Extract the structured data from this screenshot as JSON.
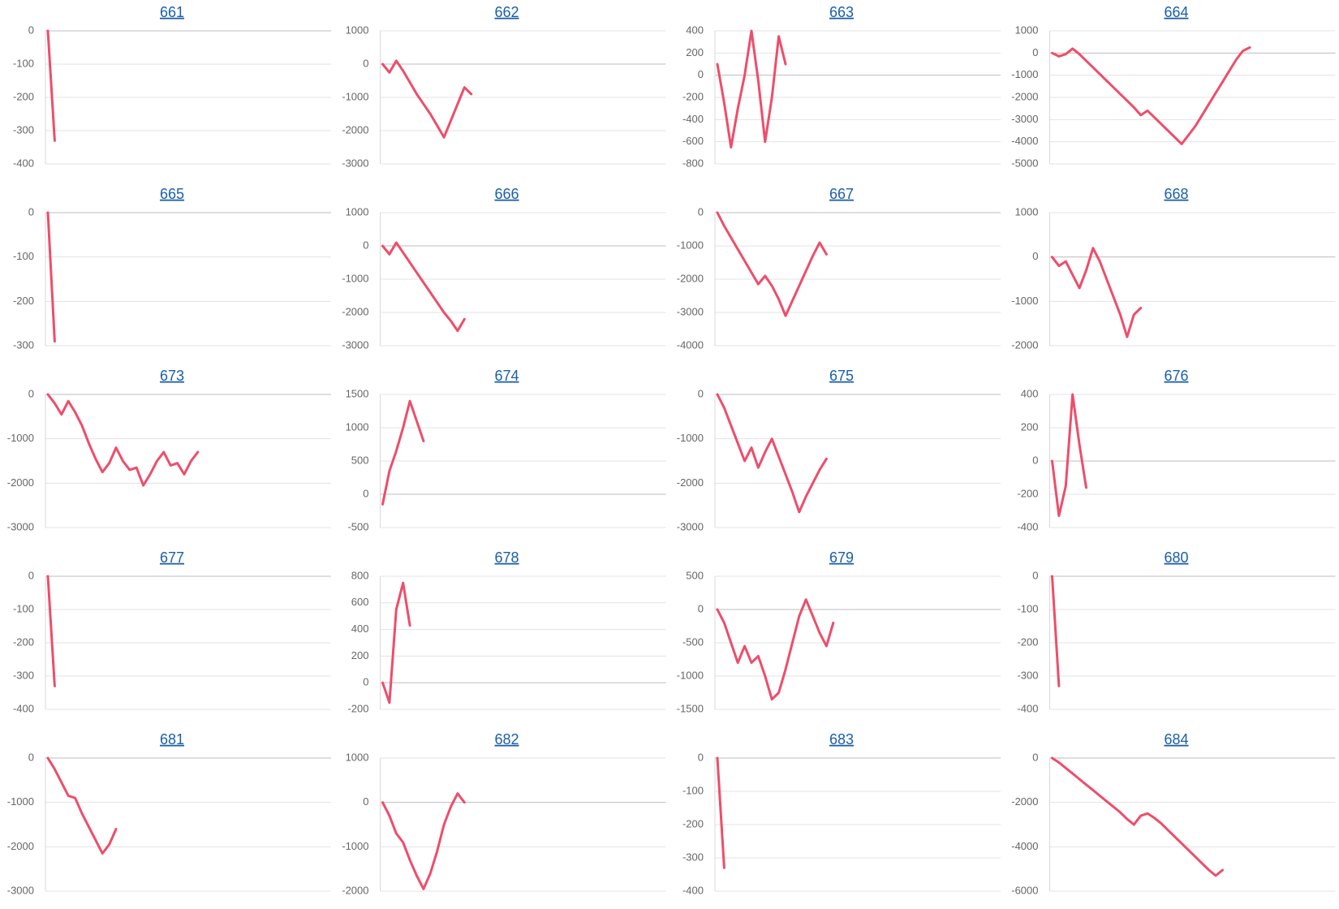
{
  "chart_data": [
    {
      "type": "line",
      "title": "661",
      "color": "#ee4d6a",
      "grid": true,
      "ylim": [
        -400,
        0
      ],
      "yticks": [
        0,
        -100,
        -200,
        -300,
        -400
      ],
      "values": [
        0,
        -330
      ]
    },
    {
      "type": "line",
      "title": "662",
      "color": "#ee4d6a",
      "grid": true,
      "ylim": [
        -3000,
        1000
      ],
      "yticks": [
        1000,
        0,
        -1000,
        -2000,
        -3000
      ],
      "values": [
        0,
        -250,
        100,
        -200,
        -550,
        -900,
        -1200,
        -1500,
        -1850,
        -2200,
        -1700,
        -1200,
        -700,
        -900
      ]
    },
    {
      "type": "line",
      "title": "663",
      "color": "#ee4d6a",
      "grid": true,
      "ylim": [
        -800,
        400
      ],
      "yticks": [
        400,
        200,
        0,
        -200,
        -400,
        -600,
        -800
      ],
      "values": [
        100,
        -250,
        -650,
        -300,
        0,
        400,
        -50,
        -600,
        -200,
        350,
        100
      ]
    },
    {
      "type": "line",
      "title": "664",
      "color": "#ee4d6a",
      "grid": true,
      "ylim": [
        -5000,
        1000
      ],
      "yticks": [
        1000,
        0,
        -1000,
        -2000,
        -3000,
        -4000,
        -5000
      ],
      "values": [
        0,
        -150,
        -50,
        200,
        -50,
        -350,
        -650,
        -950,
        -1250,
        -1550,
        -1850,
        -2150,
        -2450,
        -2800,
        -2600,
        -2900,
        -3200,
        -3500,
        -3800,
        -4100,
        -3700,
        -3300,
        -2800,
        -2300,
        -1800,
        -1300,
        -800,
        -300,
        100,
        250
      ]
    },
    {
      "type": "line",
      "title": "665",
      "color": "#ee4d6a",
      "grid": true,
      "ylim": [
        -300,
        0
      ],
      "yticks": [
        0,
        -100,
        -200,
        -300
      ],
      "values": [
        0,
        -290
      ]
    },
    {
      "type": "line",
      "title": "666",
      "color": "#ee4d6a",
      "grid": true,
      "ylim": [
        -3000,
        1000
      ],
      "yticks": [
        1000,
        0,
        -1000,
        -2000,
        -3000
      ],
      "values": [
        0,
        -250,
        100,
        -200,
        -500,
        -800,
        -1100,
        -1400,
        -1700,
        -2000,
        -2250,
        -2550,
        -2200
      ]
    },
    {
      "type": "line",
      "title": "667",
      "color": "#ee4d6a",
      "grid": true,
      "ylim": [
        -4000,
        0
      ],
      "yticks": [
        0,
        -1000,
        -2000,
        -3000,
        -4000
      ],
      "values": [
        0,
        -400,
        -750,
        -1100,
        -1450,
        -1800,
        -2150,
        -1900,
        -2200,
        -2600,
        -3100,
        -2650,
        -2200,
        -1750,
        -1300,
        -900,
        -1250
      ]
    },
    {
      "type": "line",
      "title": "668",
      "color": "#ee4d6a",
      "grid": true,
      "ylim": [
        -2000,
        1000
      ],
      "yticks": [
        1000,
        0,
        -1000,
        -2000
      ],
      "values": [
        0,
        -200,
        -100,
        -400,
        -700,
        -300,
        200,
        -100,
        -500,
        -900,
        -1300,
        -1800,
        -1300,
        -1150
      ]
    },
    {
      "type": "line",
      "title": "673",
      "color": "#ee4d6a",
      "grid": true,
      "ylim": [
        -3000,
        0
      ],
      "yticks": [
        0,
        -1000,
        -2000,
        -3000
      ],
      "values": [
        0,
        -200,
        -450,
        -150,
        -400,
        -700,
        -1100,
        -1450,
        -1750,
        -1550,
        -1200,
        -1500,
        -1700,
        -1650,
        -2050,
        -1800,
        -1500,
        -1300,
        -1600,
        -1550,
        -1800,
        -1500,
        -1300
      ]
    },
    {
      "type": "line",
      "title": "674",
      "color": "#ee4d6a",
      "grid": true,
      "ylim": [
        -500,
        1500
      ],
      "yticks": [
        1500,
        1000,
        500,
        0,
        -500
      ],
      "values": [
        -150,
        350,
        650,
        1000,
        1400,
        1100,
        800
      ]
    },
    {
      "type": "line",
      "title": "675",
      "color": "#ee4d6a",
      "grid": true,
      "ylim": [
        -3000,
        0
      ],
      "yticks": [
        0,
        -1000,
        -2000,
        -3000
      ],
      "values": [
        0,
        -300,
        -700,
        -1100,
        -1500,
        -1200,
        -1650,
        -1300,
        -1000,
        -1400,
        -1800,
        -2200,
        -2650,
        -2300,
        -2000,
        -1700,
        -1450
      ]
    },
    {
      "type": "line",
      "title": "676",
      "color": "#ee4d6a",
      "grid": true,
      "ylim": [
        -400,
        400
      ],
      "yticks": [
        400,
        200,
        0,
        -200,
        -400
      ],
      "values": [
        0,
        -330,
        -150,
        400,
        100,
        -160
      ]
    },
    {
      "type": "line",
      "title": "677",
      "color": "#ee4d6a",
      "grid": true,
      "ylim": [
        -400,
        0
      ],
      "yticks": [
        0,
        -100,
        -200,
        -300,
        -400
      ],
      "values": [
        0,
        -330
      ]
    },
    {
      "type": "line",
      "title": "678",
      "color": "#ee4d6a",
      "grid": true,
      "ylim": [
        -200,
        800
      ],
      "yticks": [
        800,
        600,
        400,
        200,
        0,
        -200
      ],
      "values": [
        0,
        -150,
        550,
        750,
        430
      ]
    },
    {
      "type": "line",
      "title": "679",
      "color": "#ee4d6a",
      "grid": true,
      "ylim": [
        -1500,
        500
      ],
      "yticks": [
        500,
        0,
        -500,
        -1000,
        -1500
      ],
      "values": [
        0,
        -200,
        -500,
        -800,
        -550,
        -800,
        -700,
        -1000,
        -1350,
        -1250,
        -900,
        -500,
        -100,
        150,
        -100,
        -350,
        -550,
        -200
      ]
    },
    {
      "type": "line",
      "title": "680",
      "color": "#ee4d6a",
      "grid": true,
      "ylim": [
        -400,
        0
      ],
      "yticks": [
        0,
        -100,
        -200,
        -300,
        -400
      ],
      "values": [
        0,
        -330
      ]
    },
    {
      "type": "line",
      "title": "681",
      "color": "#ee4d6a",
      "grid": true,
      "ylim": [
        -3000,
        0
      ],
      "yticks": [
        0,
        -1000,
        -2000,
        -3000
      ],
      "values": [
        0,
        -250,
        -550,
        -850,
        -900,
        -1250,
        -1550,
        -1850,
        -2150,
        -1950,
        -1600
      ]
    },
    {
      "type": "line",
      "title": "682",
      "color": "#ee4d6a",
      "grid": true,
      "ylim": [
        -2000,
        1000
      ],
      "yticks": [
        1000,
        0,
        -1000,
        -2000
      ],
      "values": [
        0,
        -300,
        -700,
        -900,
        -1300,
        -1650,
        -1950,
        -1600,
        -1100,
        -500,
        -100,
        200,
        0
      ]
    },
    {
      "type": "line",
      "title": "683",
      "color": "#ee4d6a",
      "grid": true,
      "ylim": [
        -400,
        0
      ],
      "yticks": [
        0,
        -100,
        -200,
        -300,
        -400
      ],
      "values": [
        0,
        -330
      ]
    },
    {
      "type": "line",
      "title": "684",
      "color": "#ee4d6a",
      "grid": true,
      "ylim": [
        -6000,
        0
      ],
      "yticks": [
        0,
        -2000,
        -4000,
        -6000
      ],
      "values": [
        0,
        -200,
        -450,
        -700,
        -950,
        -1200,
        -1450,
        -1700,
        -1950,
        -2200,
        -2450,
        -2750,
        -3000,
        -2600,
        -2500,
        -2700,
        -2950,
        -3250,
        -3550,
        -3850,
        -4150,
        -4450,
        -4750,
        -5050,
        -5300,
        -5050
      ]
    }
  ]
}
